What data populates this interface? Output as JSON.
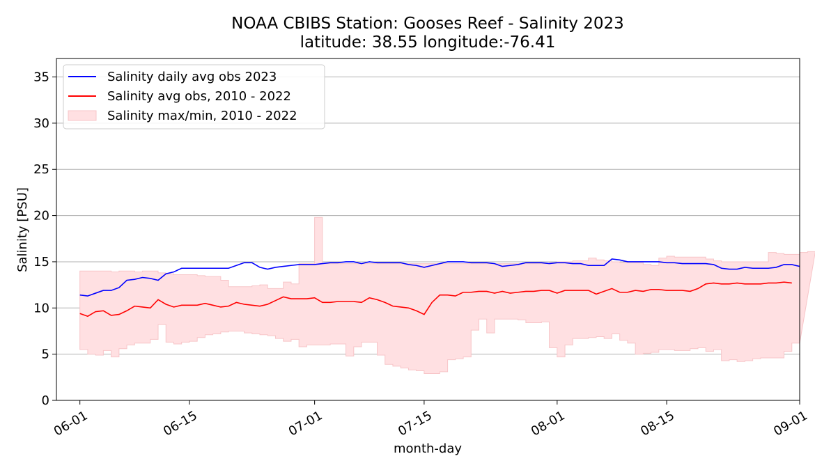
{
  "title_line1": "NOAA CBIBS Station: Gooses Reef - Salinity 2023",
  "title_line2": "latitude: 38.55 longitude:-76.41",
  "chart_data": {
    "type": "line",
    "xlabel": "month-day",
    "ylabel": "Salinity [PSU]",
    "ylim": [
      0,
      37
    ],
    "xlim": [
      "2023-05-29",
      "2023-09-01"
    ],
    "yticks": [
      0,
      5,
      10,
      15,
      20,
      25,
      30,
      35
    ],
    "xticks": [
      {
        "date": "2023-06-01",
        "label": "06-01"
      },
      {
        "date": "2023-06-15",
        "label": "06-15"
      },
      {
        "date": "2023-07-01",
        "label": "07-01"
      },
      {
        "date": "2023-07-15",
        "label": "07-15"
      },
      {
        "date": "2023-08-01",
        "label": "08-01"
      },
      {
        "date": "2023-08-15",
        "label": "08-15"
      },
      {
        "date": "2023-09-01",
        "label": "09-01"
      }
    ],
    "grid": "y",
    "legend_position": "top-left",
    "legend": [
      {
        "label": "Salinity daily avg obs 2023",
        "kind": "line",
        "color": "#0000ff"
      },
      {
        "label": "Salinity avg obs, 2010 - 2022",
        "kind": "line",
        "color": "#ff0000"
      },
      {
        "label": "Salinity max/min, 2010 - 2022",
        "kind": "band",
        "color": "#ffe0e2"
      }
    ],
    "start_date": "2023-06-01",
    "series": [
      {
        "name": "Salinity daily avg obs 2023",
        "color": "#0000ff",
        "values": [
          11.4,
          11.3,
          11.6,
          11.9,
          11.9,
          12.2,
          13.0,
          13.1,
          13.3,
          13.2,
          13.0,
          13.7,
          13.9,
          14.3,
          14.3,
          14.3,
          14.3,
          14.3,
          14.3,
          14.3,
          14.6,
          14.9,
          14.9,
          14.4,
          14.2,
          14.4,
          14.5,
          14.6,
          14.7,
          14.7,
          14.7,
          14.8,
          14.9,
          14.9,
          15.0,
          15.0,
          14.8,
          15.0,
          14.9,
          14.9,
          14.9,
          14.9,
          14.7,
          14.6,
          14.4,
          14.6,
          14.8,
          15.0,
          15.0,
          15.0,
          14.9,
          14.9,
          14.9,
          14.8,
          14.5,
          14.6,
          14.7,
          14.9,
          14.9,
          14.9,
          14.8,
          14.9,
          14.9,
          14.8,
          14.8,
          14.6,
          14.6,
          14.6,
          15.3,
          15.2,
          15.0,
          15.0,
          15.0,
          15.0,
          15.0,
          14.9,
          14.9,
          14.8,
          14.8,
          14.8,
          14.8,
          14.7,
          14.3,
          14.2,
          14.2,
          14.4,
          14.3,
          14.3,
          14.3,
          14.4,
          14.7,
          14.7,
          14.5
        ]
      },
      {
        "name": "Salinity avg obs, 2010 - 2022",
        "color": "#ff0000",
        "values": [
          9.4,
          9.1,
          9.6,
          9.7,
          9.2,
          9.3,
          9.7,
          10.2,
          10.1,
          10.0,
          10.9,
          10.4,
          10.1,
          10.3,
          10.3,
          10.3,
          10.5,
          10.3,
          10.1,
          10.2,
          10.6,
          10.4,
          10.3,
          10.2,
          10.4,
          10.8,
          11.2,
          11.0,
          11.0,
          11.0,
          11.1,
          10.6,
          10.6,
          10.7,
          10.7,
          10.7,
          10.6,
          11.1,
          10.9,
          10.6,
          10.2,
          10.1,
          10.0,
          9.7,
          9.3,
          10.6,
          11.4,
          11.4,
          11.3,
          11.7,
          11.7,
          11.8,
          11.8,
          11.6,
          11.8,
          11.6,
          11.7,
          11.8,
          11.8,
          11.9,
          11.9,
          11.6,
          11.9,
          11.9,
          11.9,
          11.9,
          11.5,
          11.8,
          12.1,
          11.7,
          11.7,
          11.9,
          11.8,
          12.0,
          12.0,
          11.9,
          11.9,
          11.9,
          11.8,
          12.1,
          12.6,
          12.7,
          12.6,
          12.6,
          12.7,
          12.6,
          12.6,
          12.6,
          12.7,
          12.7,
          12.8,
          12.7
        ]
      }
    ],
    "band": {
      "name": "Salinity max/min, 2010 - 2022",
      "color": "#ffe0e2",
      "max": [
        14.0,
        14.0,
        14.0,
        14.0,
        13.9,
        14.0,
        14.0,
        13.9,
        14.0,
        14.0,
        13.8,
        13.7,
        13.6,
        13.6,
        13.6,
        13.5,
        13.4,
        13.4,
        13.0,
        12.3,
        12.3,
        12.3,
        12.4,
        12.5,
        12.1,
        12.1,
        12.8,
        12.6,
        14.8,
        14.8,
        19.8,
        14.8,
        14.8,
        14.8,
        14.8,
        14.8,
        14.8,
        14.8,
        14.8,
        14.8,
        14.8,
        14.8,
        14.8,
        14.8,
        14.8,
        14.8,
        14.8,
        14.8,
        14.8,
        14.8,
        14.8,
        14.8,
        14.8,
        14.8,
        14.8,
        14.8,
        14.8,
        14.8,
        14.8,
        14.8,
        14.9,
        15.0,
        15.0,
        15.1,
        15.1,
        15.4,
        15.2,
        15.1,
        15.0,
        14.9,
        14.9,
        14.9,
        14.7,
        14.6,
        15.4,
        15.6,
        15.5,
        15.5,
        15.5,
        15.5,
        15.3,
        15.1,
        15.0,
        15.0,
        15.0,
        15.0,
        15.0,
        15.0,
        16.0,
        15.9,
        15.8,
        15.8,
        16.0,
        16.1
      ],
      "min": [
        5.5,
        5.0,
        4.9,
        5.4,
        4.7,
        5.6,
        6.0,
        6.2,
        6.2,
        6.6,
        8.2,
        6.3,
        6.1,
        6.3,
        6.4,
        6.8,
        7.1,
        7.2,
        7.4,
        7.5,
        7.5,
        7.3,
        7.2,
        7.1,
        7.0,
        6.7,
        6.4,
        6.6,
        5.8,
        6.0,
        6.0,
        6.0,
        6.1,
        6.1,
        4.8,
        5.8,
        6.3,
        6.3,
        4.9,
        3.9,
        3.7,
        3.5,
        3.3,
        3.2,
        2.9,
        2.9,
        3.1,
        4.4,
        4.5,
        4.7,
        7.6,
        8.8,
        7.3,
        8.8,
        8.8,
        8.8,
        8.7,
        8.4,
        8.4,
        8.5,
        5.7,
        4.7,
        6.0,
        6.7,
        6.7,
        6.8,
        6.9,
        6.7,
        7.2,
        6.5,
        6.2,
        5.0,
        5.1,
        5.2,
        5.5,
        5.5,
        5.4,
        5.4,
        5.6,
        5.7,
        5.3,
        5.5,
        4.3,
        4.4,
        4.2,
        4.3,
        4.5,
        4.6,
        4.6,
        4.6,
        5.3,
        6.2
      ]
    }
  }
}
